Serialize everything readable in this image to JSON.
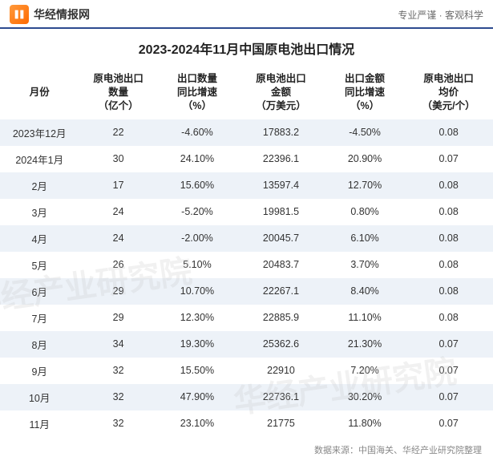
{
  "header": {
    "site_name": "华经情报网",
    "tagline": "专业严谨 · 客观科学"
  },
  "title": "2023-2024年11月中国原电池出口情况",
  "table": {
    "columns": [
      "月份",
      "原电池出口\n数量\n（亿个）",
      "出口数量\n同比增速\n（%）",
      "原电池出口\n金额\n（万美元）",
      "出口金额\n同比增速\n（%）",
      "原电池出口\n均价\n（美元/个）"
    ],
    "col_widths": [
      "16%",
      "16%",
      "16%",
      "18%",
      "16%",
      "18%"
    ],
    "header_bg": "#ffffff",
    "alt_row_bg": "#edf2f8",
    "text_color": "#333333",
    "neg_color": "#e74c3c",
    "fontsize": 12.5,
    "rows": [
      {
        "month": "2023年12月",
        "qty": "22",
        "qty_yoy": "-4.60%",
        "amt": "17883.2",
        "amt_yoy": "-4.50%",
        "price": "0.08",
        "qty_neg": true,
        "amt_neg": true
      },
      {
        "month": "2024年1月",
        "qty": "30",
        "qty_yoy": "24.10%",
        "amt": "22396.1",
        "amt_yoy": "20.90%",
        "price": "0.07",
        "qty_neg": false,
        "amt_neg": false
      },
      {
        "month": "2月",
        "qty": "17",
        "qty_yoy": "15.60%",
        "amt": "13597.4",
        "amt_yoy": "12.70%",
        "price": "0.08",
        "qty_neg": false,
        "amt_neg": false
      },
      {
        "month": "3月",
        "qty": "24",
        "qty_yoy": "-5.20%",
        "amt": "19981.5",
        "amt_yoy": "0.80%",
        "price": "0.08",
        "qty_neg": true,
        "amt_neg": false
      },
      {
        "month": "4月",
        "qty": "24",
        "qty_yoy": "-2.00%",
        "amt": "20045.7",
        "amt_yoy": "6.10%",
        "price": "0.08",
        "qty_neg": true,
        "amt_neg": false
      },
      {
        "month": "5月",
        "qty": "26",
        "qty_yoy": "5.10%",
        "amt": "20483.7",
        "amt_yoy": "3.70%",
        "price": "0.08",
        "qty_neg": false,
        "amt_neg": false
      },
      {
        "month": "6月",
        "qty": "29",
        "qty_yoy": "10.70%",
        "amt": "22267.1",
        "amt_yoy": "8.40%",
        "price": "0.08",
        "qty_neg": false,
        "amt_neg": false
      },
      {
        "month": "7月",
        "qty": "29",
        "qty_yoy": "12.30%",
        "amt": "22885.9",
        "amt_yoy": "11.10%",
        "price": "0.08",
        "qty_neg": false,
        "amt_neg": false
      },
      {
        "month": "8月",
        "qty": "34",
        "qty_yoy": "19.30%",
        "amt": "25362.6",
        "amt_yoy": "21.30%",
        "price": "0.07",
        "qty_neg": false,
        "amt_neg": false
      },
      {
        "month": "9月",
        "qty": "32",
        "qty_yoy": "15.50%",
        "amt": "22910",
        "amt_yoy": "7.20%",
        "price": "0.07",
        "qty_neg": false,
        "amt_neg": false
      },
      {
        "month": "10月",
        "qty": "32",
        "qty_yoy": "47.90%",
        "amt": "22736.1",
        "amt_yoy": "30.20%",
        "price": "0.07",
        "qty_neg": false,
        "amt_neg": false
      },
      {
        "month": "11月",
        "qty": "32",
        "qty_yoy": "23.10%",
        "amt": "21775",
        "amt_yoy": "11.80%",
        "price": "0.07",
        "qty_neg": false,
        "amt_neg": false
      }
    ]
  },
  "source": "数据来源：中国海关、华经产业研究院整理",
  "watermark_text": "华经产业研究院",
  "colors": {
    "border_accent": "#2d4b8f",
    "logo_gradient_start": "#ff9a3c",
    "logo_gradient_end": "#ff6a00"
  }
}
